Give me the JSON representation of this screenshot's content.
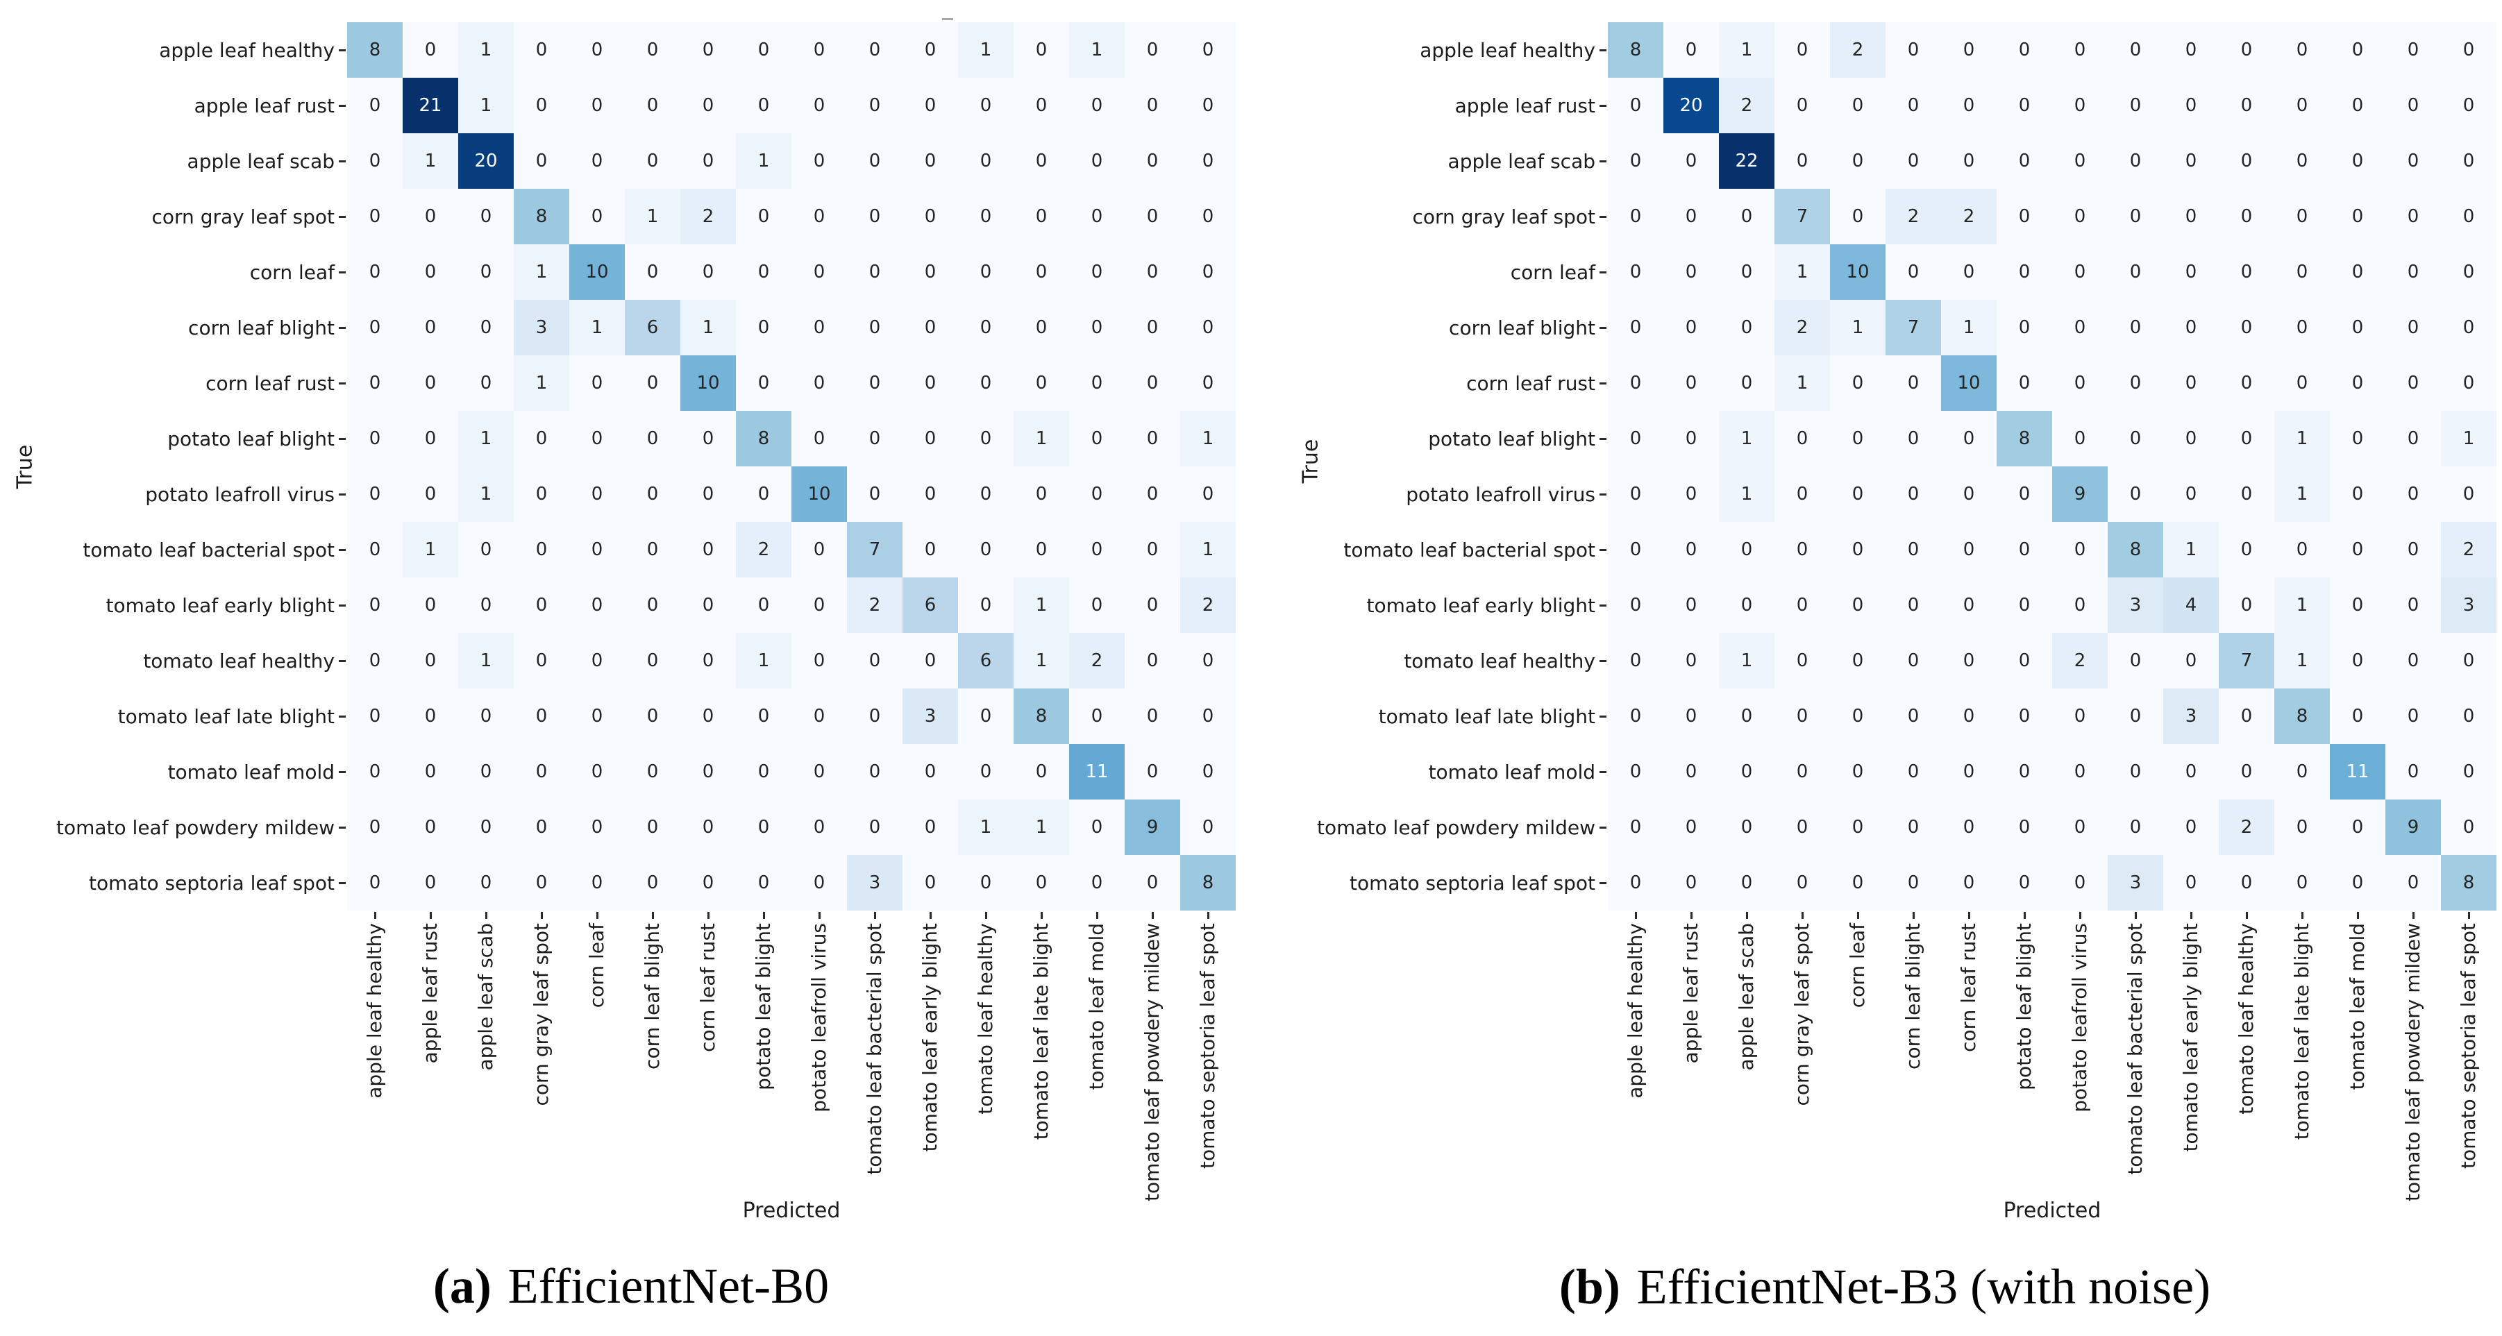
{
  "figure": {
    "stray_mark": "small gray dash above first heatmap"
  },
  "colors": {
    "background": "#ffffff",
    "colormap_name": "Blues",
    "colormap_stops": [
      "#f7fbff",
      "#deebf7",
      "#c6dbef",
      "#9ecae1",
      "#6baed6",
      "#4292c6",
      "#2171b5",
      "#08519c",
      "#08306b"
    ],
    "annot_dark": "#262626",
    "annot_light": "#ffffff",
    "tick_color": "#2b2b2b",
    "label_color": "#1c1c1c",
    "stray_mark": "#a8a8a8"
  },
  "chart_data": [
    {
      "type": "heatmap",
      "caption_prefix": "(a)",
      "caption": "EfficientNet-B0",
      "xlabel": "Predicted",
      "ylabel": "True",
      "legend_position": "none",
      "grid": false,
      "vmin": 0,
      "vmax": 21,
      "categories": [
        "apple leaf healthy",
        "apple leaf rust",
        "apple leaf scab",
        "corn gray leaf spot",
        "corn leaf",
        "corn leaf blight",
        "corn leaf rust",
        "potato leaf blight",
        "potato leafroll virus",
        "tomato leaf bacterial spot",
        "tomato leaf early blight",
        "tomato leaf healthy",
        "tomato leaf late blight",
        "tomato leaf mold",
        "tomato leaf powdery mildew",
        "tomato septoria leaf spot"
      ],
      "matrix": [
        [
          8,
          0,
          1,
          0,
          0,
          0,
          0,
          0,
          0,
          0,
          0,
          1,
          0,
          1,
          0,
          0
        ],
        [
          0,
          21,
          1,
          0,
          0,
          0,
          0,
          0,
          0,
          0,
          0,
          0,
          0,
          0,
          0,
          0
        ],
        [
          0,
          1,
          20,
          0,
          0,
          0,
          0,
          1,
          0,
          0,
          0,
          0,
          0,
          0,
          0,
          0
        ],
        [
          0,
          0,
          0,
          8,
          0,
          1,
          2,
          0,
          0,
          0,
          0,
          0,
          0,
          0,
          0,
          0
        ],
        [
          0,
          0,
          0,
          1,
          10,
          0,
          0,
          0,
          0,
          0,
          0,
          0,
          0,
          0,
          0,
          0
        ],
        [
          0,
          0,
          0,
          3,
          1,
          6,
          1,
          0,
          0,
          0,
          0,
          0,
          0,
          0,
          0,
          0
        ],
        [
          0,
          0,
          0,
          1,
          0,
          0,
          10,
          0,
          0,
          0,
          0,
          0,
          0,
          0,
          0,
          0
        ],
        [
          0,
          0,
          1,
          0,
          0,
          0,
          0,
          8,
          0,
          0,
          0,
          0,
          1,
          0,
          0,
          1
        ],
        [
          0,
          0,
          1,
          0,
          0,
          0,
          0,
          0,
          10,
          0,
          0,
          0,
          0,
          0,
          0,
          0
        ],
        [
          0,
          1,
          0,
          0,
          0,
          0,
          0,
          2,
          0,
          7,
          0,
          0,
          0,
          0,
          0,
          1
        ],
        [
          0,
          0,
          0,
          0,
          0,
          0,
          0,
          0,
          0,
          2,
          6,
          0,
          1,
          0,
          0,
          2
        ],
        [
          0,
          0,
          1,
          0,
          0,
          0,
          0,
          1,
          0,
          0,
          0,
          6,
          1,
          2,
          0,
          0
        ],
        [
          0,
          0,
          0,
          0,
          0,
          0,
          0,
          0,
          0,
          0,
          3,
          0,
          8,
          0,
          0,
          0
        ],
        [
          0,
          0,
          0,
          0,
          0,
          0,
          0,
          0,
          0,
          0,
          0,
          0,
          0,
          11,
          0,
          0
        ],
        [
          0,
          0,
          0,
          0,
          0,
          0,
          0,
          0,
          0,
          0,
          0,
          1,
          1,
          0,
          9,
          0
        ],
        [
          0,
          0,
          0,
          0,
          0,
          0,
          0,
          0,
          0,
          3,
          0,
          0,
          0,
          0,
          0,
          8
        ]
      ]
    },
    {
      "type": "heatmap",
      "caption_prefix": "(b)",
      "caption": "EfficientNet-B3 (with noise)",
      "xlabel": "Predicted",
      "ylabel": "True",
      "legend_position": "none",
      "grid": false,
      "vmin": 0,
      "vmax": 22,
      "categories": [
        "apple leaf healthy",
        "apple leaf rust",
        "apple leaf scab",
        "corn gray leaf spot",
        "corn leaf",
        "corn leaf blight",
        "corn leaf rust",
        "potato leaf blight",
        "potato leafroll virus",
        "tomato leaf bacterial spot",
        "tomato leaf early blight",
        "tomato leaf healthy",
        "tomato leaf late blight",
        "tomato leaf mold",
        "tomato leaf powdery mildew",
        "tomato septoria leaf spot"
      ],
      "matrix": [
        [
          8,
          0,
          1,
          0,
          2,
          0,
          0,
          0,
          0,
          0,
          0,
          0,
          0,
          0,
          0,
          0
        ],
        [
          0,
          20,
          2,
          0,
          0,
          0,
          0,
          0,
          0,
          0,
          0,
          0,
          0,
          0,
          0,
          0
        ],
        [
          0,
          0,
          22,
          0,
          0,
          0,
          0,
          0,
          0,
          0,
          0,
          0,
          0,
          0,
          0,
          0
        ],
        [
          0,
          0,
          0,
          7,
          0,
          2,
          2,
          0,
          0,
          0,
          0,
          0,
          0,
          0,
          0,
          0
        ],
        [
          0,
          0,
          0,
          1,
          10,
          0,
          0,
          0,
          0,
          0,
          0,
          0,
          0,
          0,
          0,
          0
        ],
        [
          0,
          0,
          0,
          2,
          1,
          7,
          1,
          0,
          0,
          0,
          0,
          0,
          0,
          0,
          0,
          0
        ],
        [
          0,
          0,
          0,
          1,
          0,
          0,
          10,
          0,
          0,
          0,
          0,
          0,
          0,
          0,
          0,
          0
        ],
        [
          0,
          0,
          1,
          0,
          0,
          0,
          0,
          8,
          0,
          0,
          0,
          0,
          1,
          0,
          0,
          1
        ],
        [
          0,
          0,
          1,
          0,
          0,
          0,
          0,
          0,
          9,
          0,
          0,
          0,
          1,
          0,
          0,
          0
        ],
        [
          0,
          0,
          0,
          0,
          0,
          0,
          0,
          0,
          0,
          8,
          1,
          0,
          0,
          0,
          0,
          2
        ],
        [
          0,
          0,
          0,
          0,
          0,
          0,
          0,
          0,
          0,
          3,
          4,
          0,
          1,
          0,
          0,
          3
        ],
        [
          0,
          0,
          1,
          0,
          0,
          0,
          0,
          0,
          2,
          0,
          0,
          7,
          1,
          0,
          0,
          0
        ],
        [
          0,
          0,
          0,
          0,
          0,
          0,
          0,
          0,
          0,
          0,
          3,
          0,
          8,
          0,
          0,
          0
        ],
        [
          0,
          0,
          0,
          0,
          0,
          0,
          0,
          0,
          0,
          0,
          0,
          0,
          0,
          11,
          0,
          0
        ],
        [
          0,
          0,
          0,
          0,
          0,
          0,
          0,
          0,
          0,
          0,
          0,
          2,
          0,
          0,
          9,
          0
        ],
        [
          0,
          0,
          0,
          0,
          0,
          0,
          0,
          0,
          0,
          3,
          0,
          0,
          0,
          0,
          0,
          8
        ]
      ]
    }
  ]
}
